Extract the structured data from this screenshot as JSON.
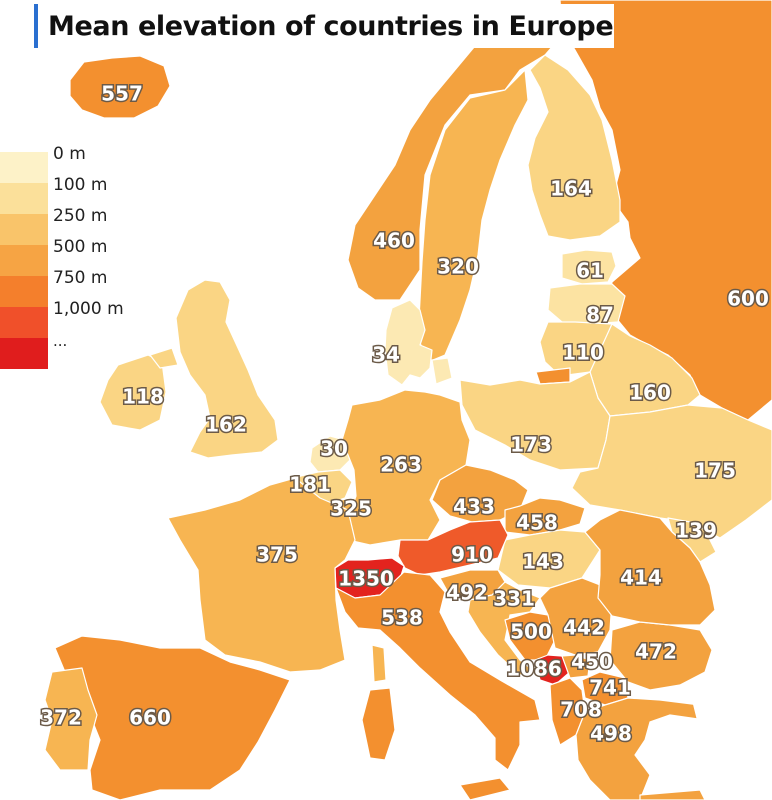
{
  "title": "Mean elevation of countries in Europe",
  "legend": {
    "items": [
      {
        "label": "0 m",
        "color": "#fdf2c8"
      },
      {
        "label": "100 m",
        "color": "#fbe09a"
      },
      {
        "label": "250 m",
        "color": "#f9c46a"
      },
      {
        "label": "500 m",
        "color": "#f6a444"
      },
      {
        "label": "750 m",
        "color": "#f47f2c"
      },
      {
        "label": "1,000 m",
        "color": "#f0502a"
      },
      {
        "label": "",
        "color": "#e01d1d"
      }
    ],
    "more": "..."
  },
  "sea_color": "#ffffff",
  "countries": [
    {
      "id": "russia",
      "value": 600,
      "color": "#f3902f"
    },
    {
      "id": "iceland",
      "value": 557,
      "color": "#f3902f"
    },
    {
      "id": "norway",
      "value": 460,
      "color": "#f3a23f"
    },
    {
      "id": "sweden",
      "value": 320,
      "color": "#f7b552"
    },
    {
      "id": "finland",
      "value": 164,
      "color": "#fad584"
    },
    {
      "id": "estonia",
      "value": 61,
      "color": "#fce3a2"
    },
    {
      "id": "latvia",
      "value": 87,
      "color": "#fce3a2"
    },
    {
      "id": "lithuania",
      "value": 110,
      "color": "#fad584"
    },
    {
      "id": "kaliningrad",
      "value": null,
      "color": "#f3902f"
    },
    {
      "id": "belarus",
      "value": 160,
      "color": "#fad584"
    },
    {
      "id": "poland",
      "value": 173,
      "color": "#fad584"
    },
    {
      "id": "ukraine",
      "value": 175,
      "color": "#fad584"
    },
    {
      "id": "moldova",
      "value": 139,
      "color": "#fad584"
    },
    {
      "id": "denmark",
      "value": 34,
      "color": "#fce9b3"
    },
    {
      "id": "ireland",
      "value": 118,
      "color": "#fad584"
    },
    {
      "id": "uk",
      "value": 162,
      "color": "#fad584"
    },
    {
      "id": "netherlands",
      "value": 30,
      "color": "#fce9b3"
    },
    {
      "id": "belgium",
      "value": 181,
      "color": "#fad584"
    },
    {
      "id": "luxembourg",
      "value": 325,
      "color": "#f7b552"
    },
    {
      "id": "germany",
      "value": 263,
      "color": "#f7b552"
    },
    {
      "id": "czechia",
      "value": 433,
      "color": "#f3a23f"
    },
    {
      "id": "slovakia",
      "value": 458,
      "color": "#f3a23f"
    },
    {
      "id": "hungary",
      "value": 143,
      "color": "#fad584"
    },
    {
      "id": "austria",
      "value": 910,
      "color": "#ef5a2a"
    },
    {
      "id": "switzerland",
      "value": 1350,
      "color": "#e3231e"
    },
    {
      "id": "slovenia",
      "value": 492,
      "color": "#f3a23f"
    },
    {
      "id": "croatia",
      "value": 331,
      "color": "#f7b552"
    },
    {
      "id": "bosnia",
      "value": 500,
      "color": "#f3902f"
    },
    {
      "id": "serbia",
      "value": 442,
      "color": "#f3a23f"
    },
    {
      "id": "montenegro",
      "value": 1086,
      "color": "#e3231e"
    },
    {
      "id": "kosovo",
      "value": 450,
      "color": "#f3a23f"
    },
    {
      "id": "north_macedonia",
      "value": 741,
      "color": "#f3902f"
    },
    {
      "id": "albania",
      "value": 708,
      "color": "#f3902f"
    },
    {
      "id": "bulgaria",
      "value": 472,
      "color": "#f3a23f"
    },
    {
      "id": "romania",
      "value": 414,
      "color": "#f3a23f"
    },
    {
      "id": "greece",
      "value": 498,
      "color": "#f3a23f"
    },
    {
      "id": "france",
      "value": 375,
      "color": "#f7b552"
    },
    {
      "id": "italy",
      "value": 538,
      "color": "#f3902f"
    },
    {
      "id": "spain",
      "value": 660,
      "color": "#f3902f"
    },
    {
      "id": "portugal",
      "value": 372,
      "color": "#f7b552"
    },
    {
      "id": "turkey",
      "value": null,
      "color": "#ffffff"
    }
  ]
}
